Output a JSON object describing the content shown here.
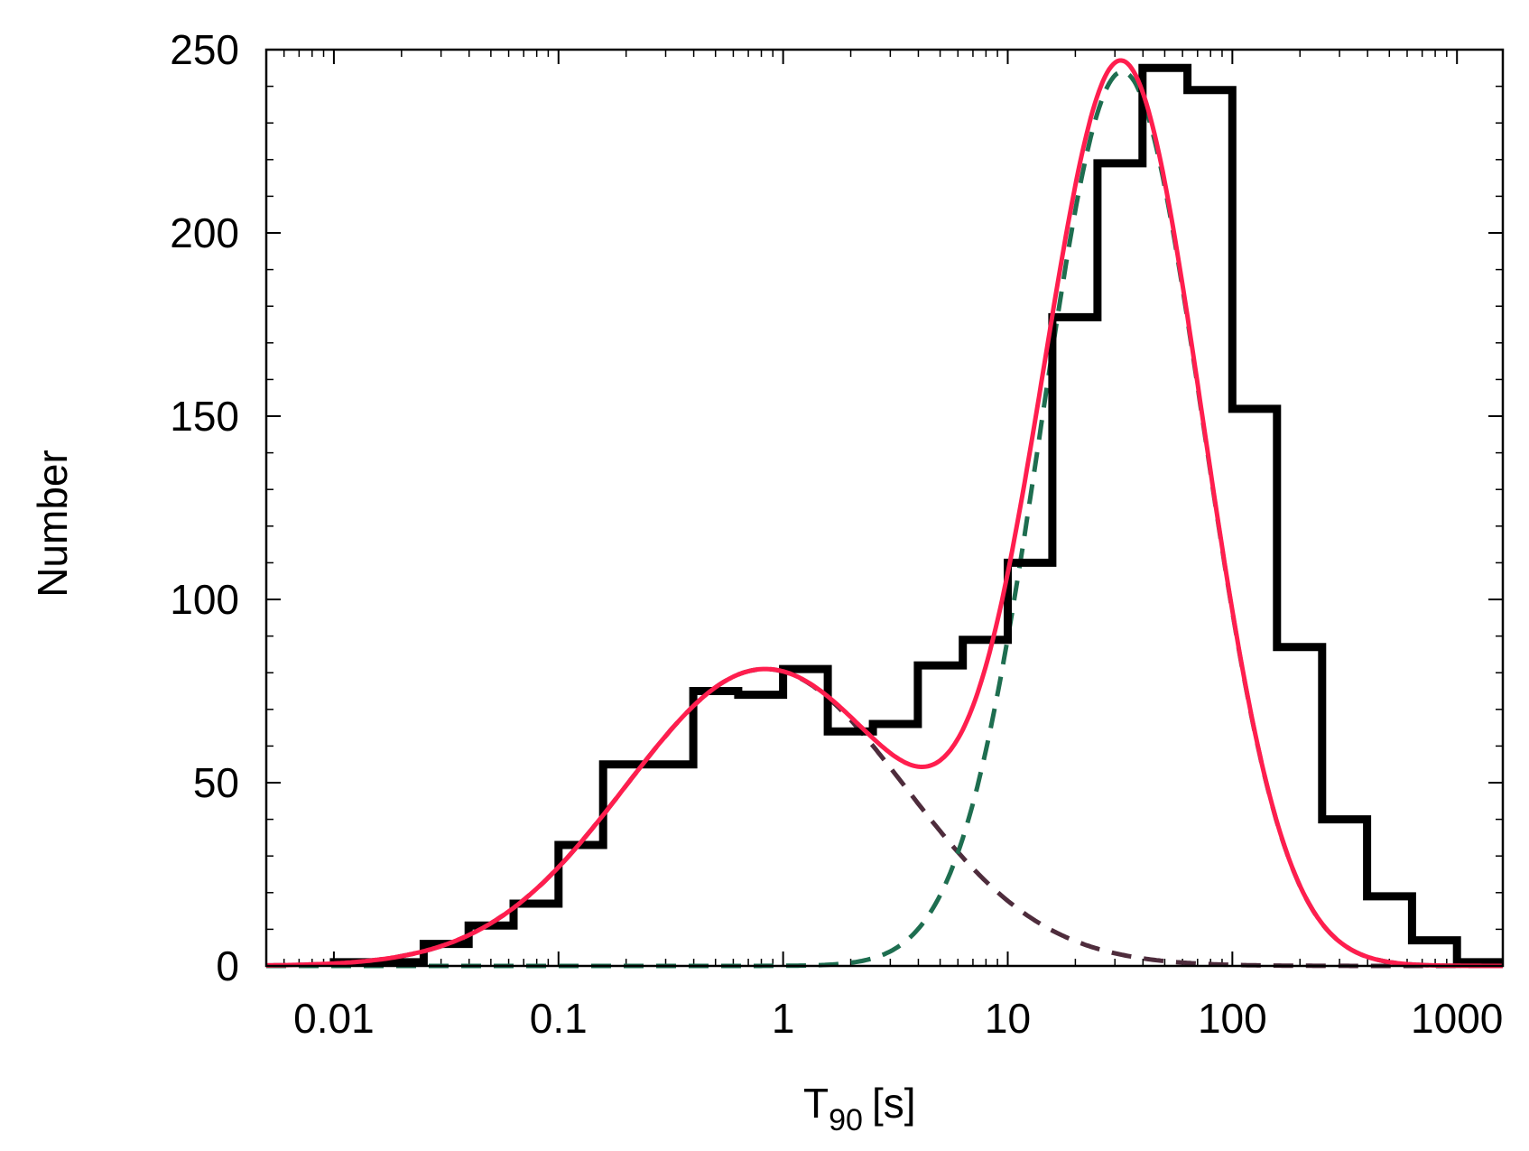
{
  "chart_data": {
    "type": "histogram",
    "xscale": "log",
    "xlim": [
      0.005,
      1600
    ],
    "ylim": [
      0,
      250
    ],
    "xlabel": "T",
    "xlabel_subscript": "90",
    "xlabel_unit": "[s]",
    "ylabel": "Number",
    "x_ticks": [
      {
        "value": 0.01,
        "label": "0.01"
      },
      {
        "value": 0.1,
        "label": "0.1"
      },
      {
        "value": 1,
        "label": "1"
      },
      {
        "value": 10,
        "label": "10"
      },
      {
        "value": 100,
        "label": "100"
      },
      {
        "value": 1000,
        "label": "1000"
      }
    ],
    "y_ticks": [
      {
        "value": 0,
        "label": "0"
      },
      {
        "value": 50,
        "label": "50"
      },
      {
        "value": 100,
        "label": "100"
      },
      {
        "value": 150,
        "label": "150"
      },
      {
        "value": 200,
        "label": "200"
      },
      {
        "value": 250,
        "label": "250"
      }
    ],
    "histogram": {
      "color": "#000000",
      "bin_edges": [
        0.01,
        0.0158,
        0.0251,
        0.0398,
        0.0631,
        0.1,
        0.158,
        0.251,
        0.398,
        0.631,
        1.0,
        1.58,
        2.51,
        3.98,
        6.31,
        10.0,
        15.8,
        25.1,
        39.8,
        63.1,
        100,
        158,
        251,
        398,
        631,
        1000,
        1585
      ],
      "counts": [
        1,
        1,
        6,
        11,
        17,
        33,
        55,
        55,
        75,
        74,
        81,
        64,
        66,
        82,
        89,
        110,
        177,
        219,
        245,
        239,
        152,
        87,
        40,
        19,
        7,
        1
      ]
    },
    "series": [
      {
        "kind": "fit-total",
        "color": "#ff1e4e",
        "style": "solid",
        "components": [
          0,
          1
        ]
      },
      {
        "kind": "component-short",
        "color": "#4e2c3c",
        "style": "dashed",
        "amplitude": 81,
        "log_mean": -0.08,
        "log_sigma": 0.62
      },
      {
        "kind": "component-long",
        "color": "#1e6e50",
        "style": "dashed",
        "amplitude": 244,
        "log_mean": 1.51,
        "log_sigma": 0.36
      }
    ]
  }
}
